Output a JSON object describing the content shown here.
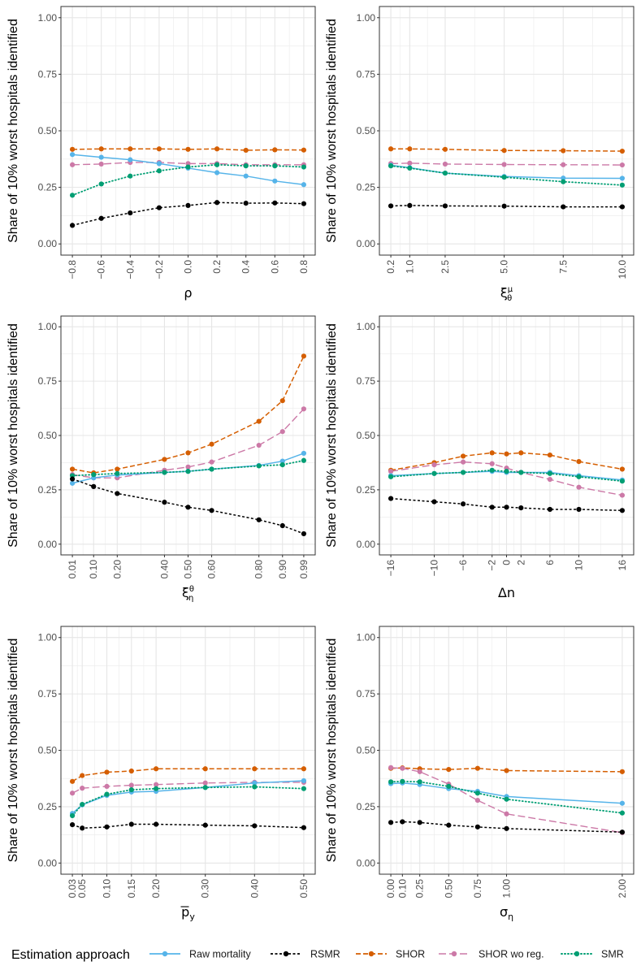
{
  "colors": {
    "Raw mortality": "#56B4E9",
    "RSMR": "#000000",
    "SHOR": "#D55E00",
    "SHOR wo reg.": "#CC79A7",
    "SMR": "#009E73"
  },
  "legend": {
    "title": "Estimation approach",
    "entries": [
      "Raw mortality",
      "RSMR",
      "SHOR",
      "SHOR wo reg.",
      "SMR"
    ]
  },
  "chart_data": [
    {
      "type": "line",
      "ylabel": "Share of 10% worst hospitals identified",
      "xlabel": "ρ",
      "ylim": [
        0,
        1
      ],
      "yticks": [
        "0.00",
        "0.25",
        "0.50",
        "0.75",
        "1.00"
      ],
      "x": [
        -0.8,
        -0.6,
        -0.4,
        -0.2,
        0.0,
        0.2,
        0.4,
        0.6,
        0.8
      ],
      "xticks": [
        "−0.8",
        "−0.6",
        "−0.4",
        "−0.2",
        "0.0",
        "0.2",
        "0.4",
        "0.6",
        "0.8"
      ],
      "series": [
        {
          "name": "Raw mortality",
          "values": [
            0.395,
            0.383,
            0.372,
            0.355,
            0.335,
            0.315,
            0.3,
            0.278,
            0.262
          ]
        },
        {
          "name": "RSMR",
          "values": [
            0.082,
            0.113,
            0.137,
            0.16,
            0.17,
            0.183,
            0.18,
            0.181,
            0.178
          ]
        },
        {
          "name": "SHOR",
          "values": [
            0.418,
            0.42,
            0.42,
            0.42,
            0.418,
            0.42,
            0.414,
            0.416,
            0.415
          ]
        },
        {
          "name": "SHOR wo reg.",
          "values": [
            0.35,
            0.353,
            0.36,
            0.36,
            0.355,
            0.355,
            0.35,
            0.35,
            0.35
          ]
        },
        {
          "name": "SMR",
          "values": [
            0.215,
            0.265,
            0.3,
            0.323,
            0.34,
            0.35,
            0.345,
            0.345,
            0.34
          ]
        }
      ]
    },
    {
      "type": "line",
      "ylabel": "Share of 10% worst hospitals identified",
      "xlabel": "ξ",
      "xlabel_sup": "μ",
      "xlabel_sub": "θ",
      "ylim": [
        0,
        1
      ],
      "yticks": [
        "0.00",
        "0.25",
        "0.50",
        "0.75",
        "1.00"
      ],
      "x": [
        0.2,
        1.0,
        2.5,
        5.0,
        7.5,
        10.0
      ],
      "xticks": [
        "0.2",
        "1.0",
        "2.5",
        "5.0",
        "7.5",
        "10.0"
      ],
      "series": [
        {
          "name": "Raw mortality",
          "values": [
            0.348,
            0.337,
            0.313,
            0.298,
            0.291,
            0.29
          ]
        },
        {
          "name": "RSMR",
          "values": [
            0.168,
            0.17,
            0.168,
            0.167,
            0.164,
            0.164
          ]
        },
        {
          "name": "SHOR",
          "values": [
            0.42,
            0.42,
            0.418,
            0.413,
            0.412,
            0.41
          ]
        },
        {
          "name": "SHOR wo reg.",
          "values": [
            0.355,
            0.357,
            0.353,
            0.351,
            0.35,
            0.349
          ]
        },
        {
          "name": "SMR",
          "values": [
            0.345,
            0.335,
            0.313,
            0.295,
            0.275,
            0.26
          ]
        }
      ]
    },
    {
      "type": "line",
      "ylabel": "Share of 10% worst hospitals identified",
      "xlabel": "ξ",
      "xlabel_sup": "θ",
      "xlabel_sub": "η",
      "ylim": [
        0,
        1
      ],
      "yticks": [
        "0.00",
        "0.25",
        "0.50",
        "0.75",
        "1.00"
      ],
      "x": [
        0.01,
        0.1,
        0.2,
        0.4,
        0.5,
        0.6,
        0.8,
        0.9,
        0.99
      ],
      "xticks": [
        "0.01",
        "0.10",
        "0.20",
        "0.40",
        "0.50",
        "0.60",
        "0.80",
        "0.90",
        "0.99"
      ],
      "series": [
        {
          "name": "Raw mortality",
          "values": [
            0.28,
            0.305,
            0.318,
            0.33,
            0.335,
            0.345,
            0.362,
            0.382,
            0.418
          ]
        },
        {
          "name": "RSMR",
          "values": [
            0.3,
            0.265,
            0.233,
            0.193,
            0.17,
            0.155,
            0.112,
            0.085,
            0.048
          ]
        },
        {
          "name": "SHOR",
          "values": [
            0.345,
            0.328,
            0.345,
            0.39,
            0.42,
            0.46,
            0.565,
            0.66,
            0.865
          ]
        },
        {
          "name": "SHOR wo reg.",
          "values": [
            0.32,
            0.305,
            0.305,
            0.34,
            0.355,
            0.378,
            0.455,
            0.518,
            0.622
          ]
        },
        {
          "name": "SMR",
          "values": [
            0.315,
            0.32,
            0.325,
            0.33,
            0.335,
            0.345,
            0.36,
            0.365,
            0.385
          ]
        }
      ]
    },
    {
      "type": "line",
      "ylabel": "Share of 10% worst hospitals identified",
      "xlabel": "Δn",
      "ylim": [
        0,
        1
      ],
      "yticks": [
        "0.00",
        "0.25",
        "0.50",
        "0.75",
        "1.00"
      ],
      "x": [
        -16,
        -10,
        -6,
        -2,
        0,
        2,
        6,
        10,
        16
      ],
      "xticks": [
        "−16",
        "−10",
        "−6",
        "−2",
        "0",
        "2",
        "6",
        "10",
        "16"
      ],
      "series": [
        {
          "name": "Raw mortality",
          "values": [
            0.315,
            0.325,
            0.33,
            0.335,
            0.33,
            0.33,
            0.33,
            0.315,
            0.295
          ]
        },
        {
          "name": "RSMR",
          "values": [
            0.21,
            0.195,
            0.185,
            0.17,
            0.17,
            0.167,
            0.16,
            0.16,
            0.155
          ]
        },
        {
          "name": "SHOR",
          "values": [
            0.34,
            0.375,
            0.405,
            0.42,
            0.415,
            0.42,
            0.41,
            0.38,
            0.345
          ]
        },
        {
          "name": "SHOR wo reg.",
          "values": [
            0.335,
            0.365,
            0.378,
            0.37,
            0.35,
            0.33,
            0.298,
            0.262,
            0.225
          ]
        },
        {
          "name": "SMR",
          "values": [
            0.31,
            0.325,
            0.33,
            0.34,
            0.335,
            0.33,
            0.325,
            0.31,
            0.29
          ]
        }
      ]
    },
    {
      "type": "line",
      "ylabel": "Share of 10% worst hospitals identified",
      "xlabel": "p",
      "xlabel_sub": "y",
      "xlabel_overline": true,
      "ylim": [
        0,
        1
      ],
      "yticks": [
        "0.00",
        "0.25",
        "0.50",
        "0.75",
        "1.00"
      ],
      "x": [
        0.03,
        0.05,
        0.1,
        0.15,
        0.2,
        0.3,
        0.4,
        0.5
      ],
      "xticks": [
        "0.03",
        "0.05",
        "0.10",
        "0.15",
        "0.20",
        "0.30",
        "0.40",
        "0.50"
      ],
      "series": [
        {
          "name": "Raw mortality",
          "values": [
            0.22,
            0.258,
            0.3,
            0.315,
            0.318,
            0.335,
            0.355,
            0.365
          ]
        },
        {
          "name": "RSMR",
          "values": [
            0.17,
            0.155,
            0.16,
            0.172,
            0.172,
            0.168,
            0.165,
            0.157
          ]
        },
        {
          "name": "SHOR",
          "values": [
            0.362,
            0.388,
            0.403,
            0.408,
            0.418,
            0.418,
            0.418,
            0.418
          ]
        },
        {
          "name": "SHOR wo reg.",
          "values": [
            0.31,
            0.332,
            0.34,
            0.345,
            0.348,
            0.355,
            0.358,
            0.358
          ]
        },
        {
          "name": "SMR",
          "values": [
            0.21,
            0.26,
            0.305,
            0.325,
            0.33,
            0.335,
            0.338,
            0.33
          ]
        }
      ]
    },
    {
      "type": "line",
      "ylabel": "Share of 10% worst hospitals identified",
      "xlabel": "σ",
      "xlabel_sub": "η",
      "ylim": [
        0,
        1
      ],
      "yticks": [
        "0.00",
        "0.25",
        "0.50",
        "0.75",
        "1.00"
      ],
      "x": [
        0.0,
        0.1,
        0.25,
        0.5,
        0.75,
        1.0,
        2.0
      ],
      "xticks": [
        "0.00",
        "0.10",
        "0.25",
        "0.50",
        "0.75",
        "1.00",
        "2.00"
      ],
      "series": [
        {
          "name": "Raw mortality",
          "values": [
            0.352,
            0.355,
            0.348,
            0.33,
            0.318,
            0.295,
            0.265
          ]
        },
        {
          "name": "RSMR",
          "values": [
            0.18,
            0.183,
            0.18,
            0.168,
            0.16,
            0.153,
            0.137
          ]
        },
        {
          "name": "SHOR",
          "values": [
            0.42,
            0.422,
            0.418,
            0.415,
            0.42,
            0.41,
            0.405
          ]
        },
        {
          "name": "SHOR wo reg.",
          "values": [
            0.423,
            0.42,
            0.405,
            0.35,
            0.278,
            0.218,
            0.135
          ]
        },
        {
          "name": "SMR",
          "values": [
            0.36,
            0.362,
            0.36,
            0.34,
            0.31,
            0.283,
            0.222
          ]
        }
      ]
    }
  ]
}
